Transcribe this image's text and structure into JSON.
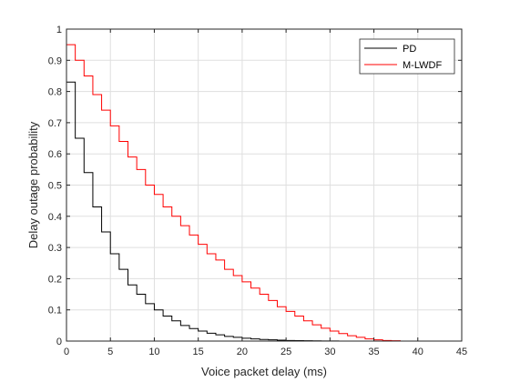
{
  "chart_data": {
    "type": "line",
    "step": true,
    "title": "",
    "xlabel": "Voice packet delay (ms)",
    "ylabel": "Delay outage probability",
    "xlim": [
      0,
      45
    ],
    "ylim": [
      0,
      1
    ],
    "xticks": [
      0,
      5,
      10,
      15,
      20,
      25,
      30,
      35,
      40,
      45
    ],
    "yticks": [
      0,
      0.1,
      0.2,
      0.3,
      0.4,
      0.5,
      0.6,
      0.7,
      0.8,
      0.9,
      1
    ],
    "xtick_labels": [
      "0",
      "5",
      "10",
      "15",
      "20",
      "25",
      "30",
      "35",
      "40",
      "45"
    ],
    "ytick_labels": [
      "0",
      "0.1",
      "0.2",
      "0.3",
      "0.4",
      "0.5",
      "0.6",
      "0.7",
      "0.8",
      "0.9",
      "1"
    ],
    "grid": true,
    "legend_position": "top-right",
    "series": [
      {
        "name": "PD",
        "color": "#000000",
        "x": [
          0,
          1,
          2,
          3,
          4,
          5,
          6,
          7,
          8,
          9,
          10,
          11,
          12,
          13,
          14,
          15,
          16,
          17,
          18,
          19,
          20,
          21,
          22,
          23,
          24,
          25,
          26,
          27,
          28,
          29,
          30,
          31,
          45
        ],
        "y": [
          0.83,
          0.65,
          0.54,
          0.43,
          0.35,
          0.28,
          0.23,
          0.18,
          0.15,
          0.12,
          0.1,
          0.08,
          0.065,
          0.05,
          0.04,
          0.032,
          0.025,
          0.02,
          0.015,
          0.012,
          0.009,
          0.007,
          0.005,
          0.004,
          0.003,
          0.002,
          0.0015,
          0.001,
          0.0008,
          0.0005,
          0.0002,
          0.0,
          0.0
        ]
      },
      {
        "name": "M-LWDF",
        "color": "#ff0000",
        "x": [
          0,
          1,
          2,
          3,
          4,
          5,
          6,
          7,
          8,
          9,
          10,
          11,
          12,
          13,
          14,
          15,
          16,
          17,
          18,
          19,
          20,
          21,
          22,
          23,
          24,
          25,
          26,
          27,
          28,
          29,
          30,
          31,
          32,
          33,
          34,
          35,
          36,
          37,
          38,
          45
        ],
        "y": [
          0.95,
          0.9,
          0.85,
          0.79,
          0.74,
          0.69,
          0.64,
          0.59,
          0.55,
          0.5,
          0.47,
          0.43,
          0.4,
          0.37,
          0.34,
          0.31,
          0.28,
          0.26,
          0.23,
          0.21,
          0.19,
          0.17,
          0.15,
          0.13,
          0.11,
          0.095,
          0.08,
          0.065,
          0.052,
          0.041,
          0.032,
          0.024,
          0.017,
          0.012,
          0.007,
          0.004,
          0.002,
          0.001,
          0.0,
          0.0
        ]
      }
    ]
  }
}
